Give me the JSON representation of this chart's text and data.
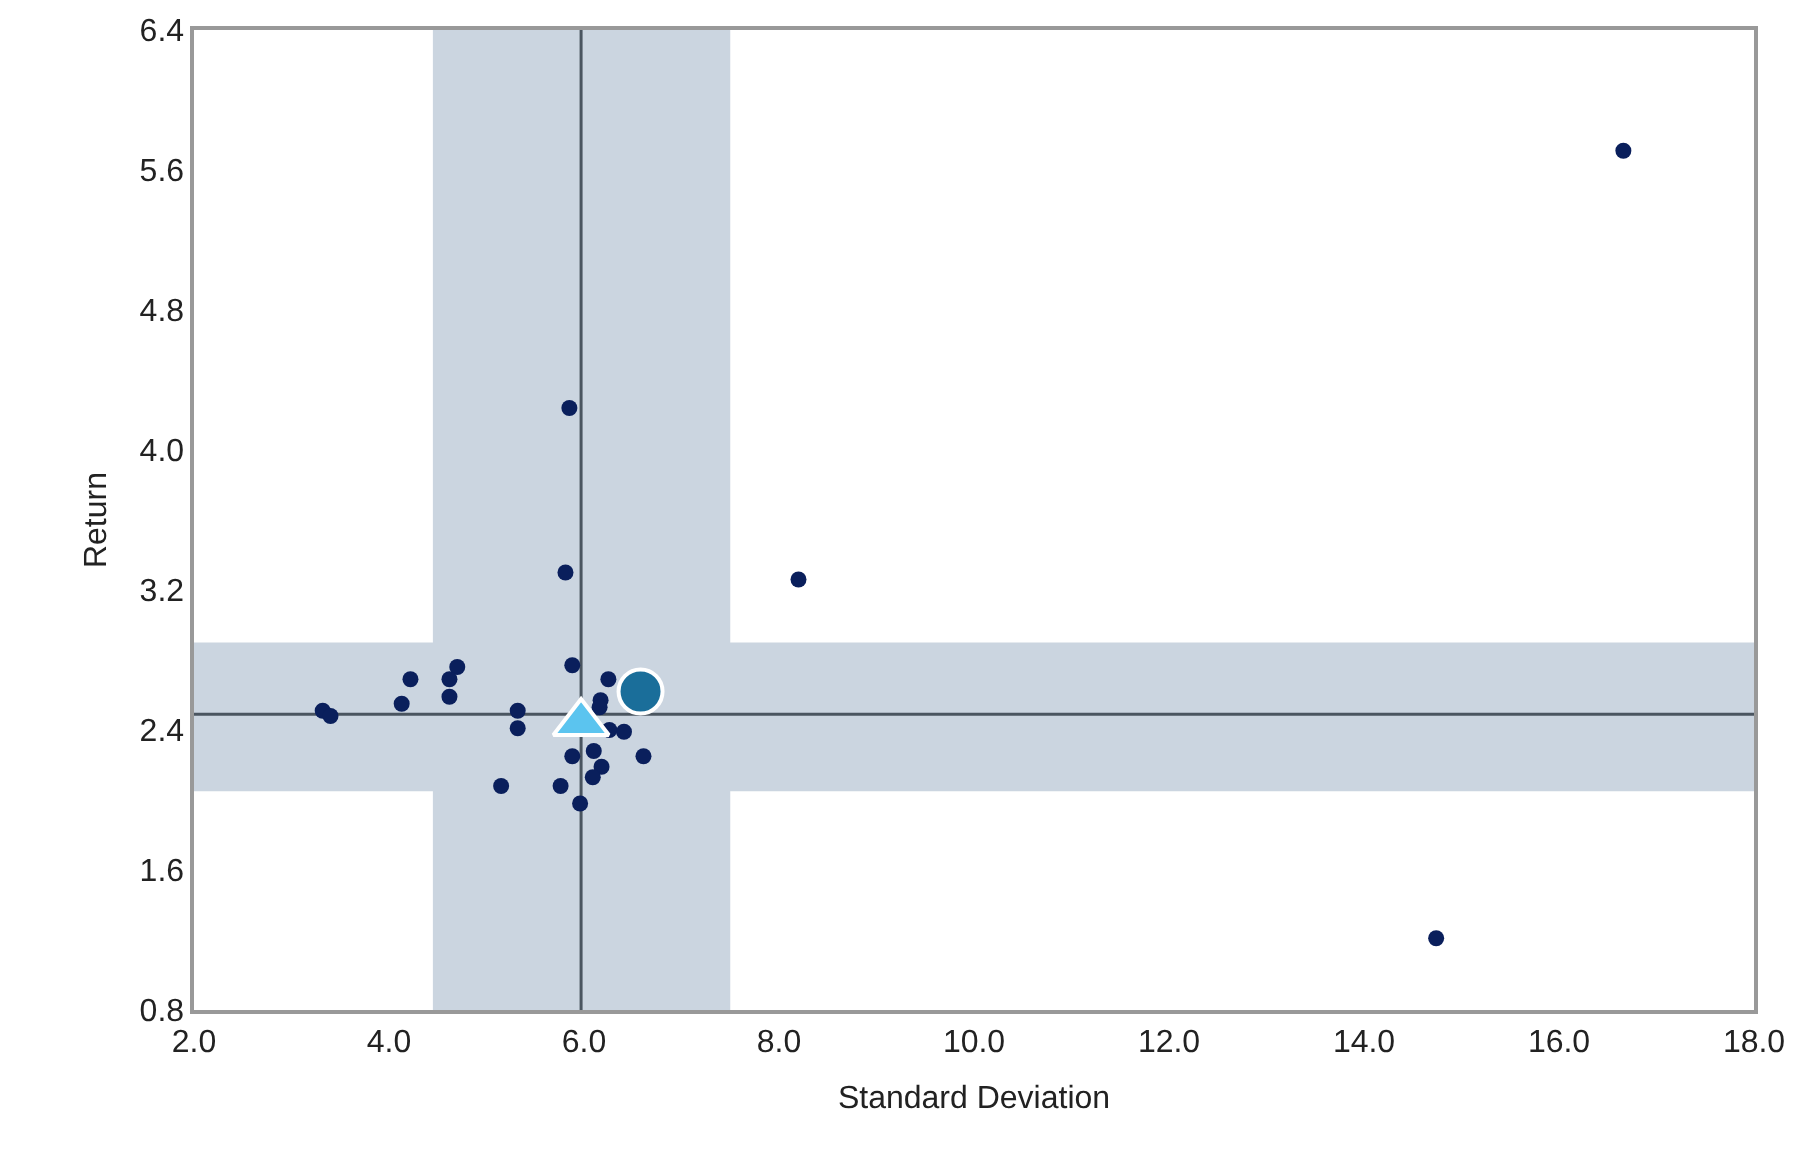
{
  "chart_data": {
    "type": "scatter",
    "xlabel": "Standard Deviation",
    "ylabel": "Return",
    "xlim": [
      2,
      18
    ],
    "ylim": [
      0.8,
      6.4
    ],
    "xticks": [
      {
        "value": 2,
        "label": "2.0"
      },
      {
        "value": 4,
        "label": "4.0"
      },
      {
        "value": 6,
        "label": "6.0"
      },
      {
        "value": 8,
        "label": "8.0"
      },
      {
        "value": 10,
        "label": "10.0"
      },
      {
        "value": 12,
        "label": "12.0"
      },
      {
        "value": 14,
        "label": "14.0"
      },
      {
        "value": 16,
        "label": "16.0"
      },
      {
        "value": 18,
        "label": "18.0"
      }
    ],
    "yticks": [
      {
        "value": 0.8,
        "label": "0.8"
      },
      {
        "value": 1.6,
        "label": "1.6"
      },
      {
        "value": 2.4,
        "label": "2.4"
      },
      {
        "value": 3.2,
        "label": "3.2"
      },
      {
        "value": 4.0,
        "label": "4.0"
      },
      {
        "value": 4.8,
        "label": "4.8"
      },
      {
        "value": 5.6,
        "label": "5.6"
      },
      {
        "value": 6.4,
        "label": "6.4"
      }
    ],
    "bands": [
      {
        "axis": "x",
        "from": 4.45,
        "to": 7.5,
        "color": "#cbd5e0"
      },
      {
        "axis": "y",
        "from": 2.05,
        "to": 2.9,
        "color": "#cbd5e0"
      }
    ],
    "ref_lines": [
      {
        "axis": "x",
        "value": 5.97,
        "color": "#4a5560"
      },
      {
        "axis": "y",
        "value": 2.49,
        "color": "#4a5560"
      }
    ],
    "series": [
      {
        "color": "#0a1f5c",
        "marker": "circle",
        "x": [
          5.85,
          5.81,
          5.88,
          6.25,
          6.17,
          6.16,
          6.26,
          6.41,
          6.61,
          5.88,
          6.1,
          6.18,
          6.09,
          5.76,
          5.15,
          5.96,
          5.32,
          5.32,
          4.22,
          4.13,
          4.7,
          4.62,
          4.62,
          3.32,
          3.4,
          14.74,
          16.66,
          8.2
        ],
        "values": [
          4.24,
          3.3,
          2.77,
          2.69,
          2.57,
          2.53,
          2.4,
          2.39,
          2.25,
          2.25,
          2.28,
          2.19,
          2.13,
          2.08,
          2.08,
          1.98,
          2.51,
          2.41,
          2.69,
          2.55,
          2.76,
          2.69,
          2.59,
          2.51,
          2.48,
          1.21,
          5.71,
          3.26
        ]
      },
      {
        "color": "#1a6e9a",
        "marker": "circle",
        "x": [
          6.58
        ],
        "values": [
          2.62
        ]
      },
      {
        "color": "#5bc4ef",
        "marker": "triangle",
        "x": [
          5.97
        ],
        "values": [
          2.44
        ]
      }
    ]
  }
}
